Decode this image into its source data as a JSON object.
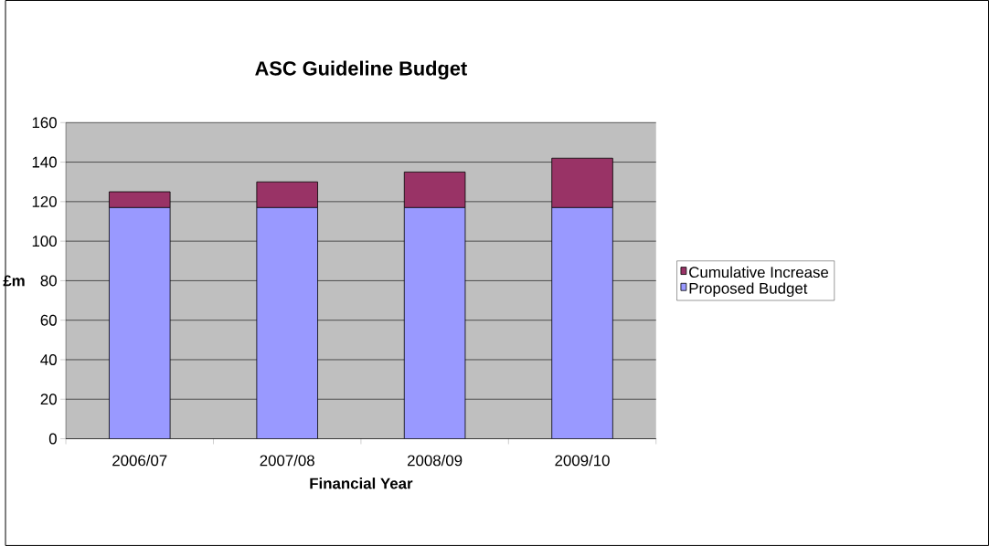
{
  "chart_data": {
    "type": "bar",
    "stacked": true,
    "title": "ASC Guideline Budget",
    "xlabel": "Financial Year",
    "ylabel": "£m",
    "categories": [
      "2006/07",
      "2007/08",
      "2008/09",
      "2009/10"
    ],
    "series": [
      {
        "name": "Proposed Budget",
        "color": "#9999ff",
        "values": [
          117,
          117,
          117,
          117
        ]
      },
      {
        "name": "Cumulative Increase",
        "color": "#993366",
        "values": [
          8,
          13,
          18,
          25
        ]
      }
    ],
    "ylim": [
      0,
      160
    ],
    "yticks": [
      0,
      20,
      40,
      60,
      80,
      100,
      120,
      140,
      160
    ],
    "grid": "y",
    "legend": "right"
  }
}
